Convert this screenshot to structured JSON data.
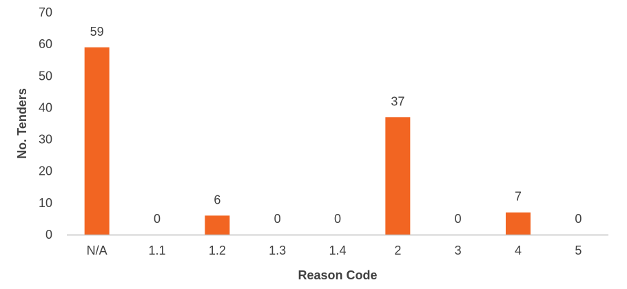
{
  "chart_data": {
    "type": "bar",
    "categories": [
      "N/A",
      "1.1",
      "1.2",
      "1.3",
      "1.4",
      "2",
      "3",
      "4",
      "5"
    ],
    "values": [
      59,
      0,
      6,
      0,
      0,
      37,
      0,
      7,
      0
    ],
    "data_labels": [
      "59",
      "0",
      "6",
      "0",
      "0",
      "37",
      "0",
      "7",
      "0"
    ],
    "title": "",
    "xlabel": "Reason Code",
    "ylabel": "No. Tenders",
    "ylim": [
      0,
      70
    ],
    "yticks": [
      0,
      10,
      20,
      30,
      40,
      50,
      60,
      70
    ],
    "grid": false,
    "legend": "none",
    "bar_color": "#F26522",
    "axis_color": "#BFBFBF",
    "text_color": "#404040"
  }
}
